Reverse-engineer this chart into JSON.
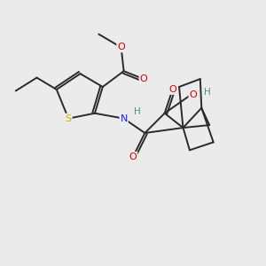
{
  "background_color": "#ebebeb",
  "bond_color": "#2a2a2a",
  "text_colors": {
    "S": "#c8b400",
    "N": "#1a1aee",
    "O": "#cc0000",
    "H": "#4a9090",
    "C": "#2a2a2a"
  },
  "lw": 1.4
}
